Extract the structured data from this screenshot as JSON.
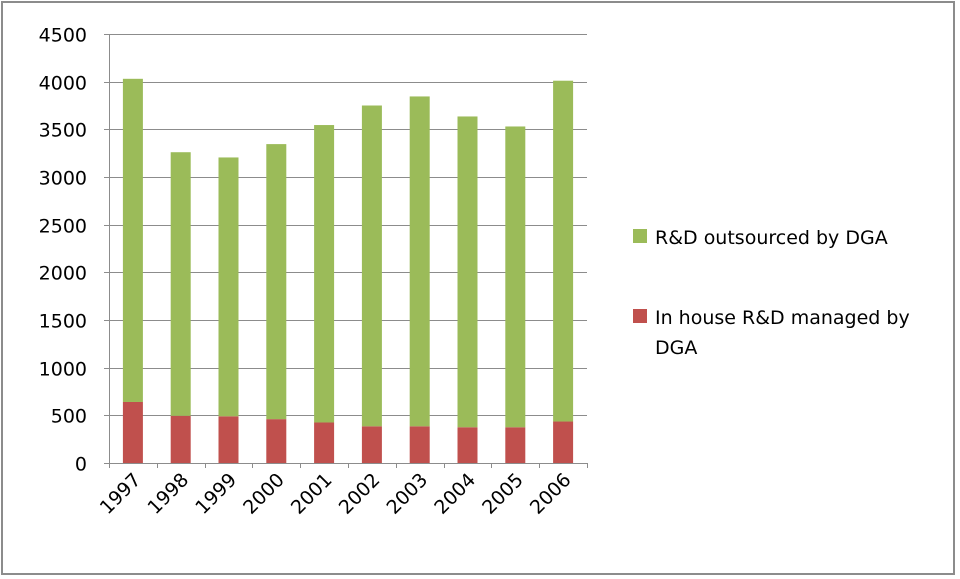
{
  "chart_data": {
    "type": "bar",
    "stacked": true,
    "categories": [
      "1997",
      "1998",
      "1999",
      "2000",
      "2001",
      "2002",
      "2003",
      "2004",
      "2005",
      "2006"
    ],
    "series": [
      {
        "name": "In house R&D managed by DGA",
        "color": "#c0504d",
        "values": [
          640,
          495,
          490,
          460,
          425,
          385,
          385,
          375,
          375,
          435
        ]
      },
      {
        "name": "R&D outsourced by DGA",
        "color": "#9bbb59",
        "values": [
          3390,
          2765,
          2715,
          2885,
          3120,
          3365,
          3460,
          3260,
          3155,
          3575
        ]
      }
    ],
    "legend_order": [
      1,
      0
    ],
    "y_ticks": [
      0,
      500,
      1000,
      1500,
      2000,
      2500,
      3000,
      3500,
      4000,
      4500
    ],
    "ylim": [
      0,
      4500
    ],
    "grid": true,
    "legend_position": "right",
    "legend": {
      "outsourced": "R&D outsourced by DGA",
      "inhouse_line1": "In house R&D managed by",
      "inhouse_line2": "DGA"
    }
  }
}
